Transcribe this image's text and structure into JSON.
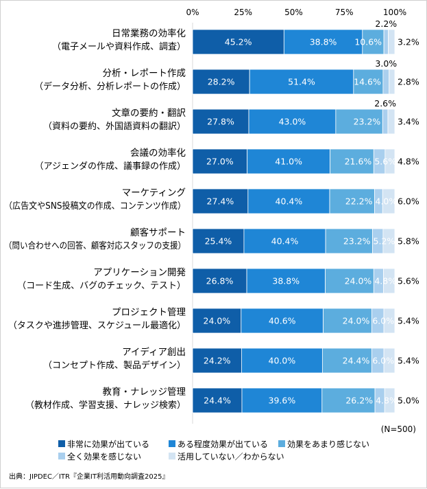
{
  "chart_data": {
    "type": "bar",
    "orientation": "horizontal",
    "stacked": true,
    "xlim": [
      0,
      100
    ],
    "x_ticks": [
      "0%",
      "25%",
      "50%",
      "75%",
      "100%"
    ],
    "legend_placement": "bottom",
    "categories": [
      {
        "name": "日常業務の効率化",
        "detail": "（電子メールや資料作成、調査）"
      },
      {
        "name": "分析・レポート作成",
        "detail": "（データ分析、分析レポートの作成）"
      },
      {
        "name": "文章の要約・翻訳",
        "detail": "（資料の要約、外国語資料の翻訳）"
      },
      {
        "name": "会議の効率化",
        "detail": "（アジェンダの作成、議事録の作成）"
      },
      {
        "name": "マーケティング",
        "detail": "（広告文やSNS投稿文の作成、コンテンツ作成）"
      },
      {
        "name": "顧客サポート",
        "detail": "（問い合わせへの回答、顧客対応スタッフの支援）"
      },
      {
        "name": "アプリケーション開発",
        "detail": "（コード生成、バグのチェック、テスト）"
      },
      {
        "name": "プロジェクト管理",
        "detail": "（タスクや進捗管理、スケジュール最適化）"
      },
      {
        "name": "アイディア創出",
        "detail": "（コンセプト作成、製品デザイン）"
      },
      {
        "name": "教育・ナレッジ管理",
        "detail": "（教材作成、学習支援、ナレッジ検索）"
      }
    ],
    "series": [
      {
        "name": "非常に効果が出ている",
        "color": "#0f5ea8",
        "values": [
          45.2,
          28.2,
          27.8,
          27.0,
          27.4,
          25.4,
          26.8,
          24.0,
          24.2,
          24.4
        ]
      },
      {
        "name": "ある程度効果が出ている",
        "color": "#1f86d6",
        "values": [
          38.8,
          51.4,
          43.0,
          41.0,
          40.4,
          40.4,
          38.8,
          40.6,
          40.0,
          39.6
        ]
      },
      {
        "name": "効果をあまり感じない",
        "color": "#5cadde",
        "values": [
          10.6,
          14.6,
          23.2,
          21.6,
          22.2,
          23.2,
          24.0,
          24.0,
          24.4,
          26.2
        ]
      },
      {
        "name": "全く効果を感じない",
        "color": "#a9cfee",
        "values": [
          2.2,
          3.0,
          2.6,
          5.6,
          4.0,
          5.2,
          4.8,
          6.0,
          6.0,
          4.8
        ]
      },
      {
        "name": "活用していない／わからない",
        "color": "#d3e4f3",
        "values": [
          3.2,
          2.8,
          3.4,
          4.8,
          6.0,
          5.8,
          5.6,
          5.4,
          5.4,
          5.0
        ]
      }
    ],
    "value_labels": [
      [
        "45.2%",
        "38.8%",
        "10.6%",
        "2.2%",
        "3.2%"
      ],
      [
        "28.2%",
        "51.4%",
        "14.6%",
        "3.0%",
        "2.8%"
      ],
      [
        "27.8%",
        "43.0%",
        "23.2%",
        "2.6%",
        "3.4%"
      ],
      [
        "27.0%",
        "41.0%",
        "21.6%",
        "5.6%",
        "4.8%"
      ],
      [
        "27.4%",
        "40.4%",
        "22.2%",
        "4.0%",
        "6.0%"
      ],
      [
        "25.4%",
        "40.4%",
        "23.2%",
        "5.2%",
        "5.8%"
      ],
      [
        "26.8%",
        "38.8%",
        "24.0%",
        "4.8%",
        "5.6%"
      ],
      [
        "24.0%",
        "40.6%",
        "24.0%",
        "6.0%",
        "5.4%"
      ],
      [
        "24.2%",
        "40.0%",
        "24.4%",
        "6.0%",
        "5.4%"
      ],
      [
        "24.4%",
        "39.6%",
        "26.2%",
        "4.8%",
        "5.0%"
      ]
    ],
    "sample_note": "(N=500)",
    "source": "出典：JIPDEC／ITR『企業IT利活用動向調査2025』",
    "grid": false
  }
}
